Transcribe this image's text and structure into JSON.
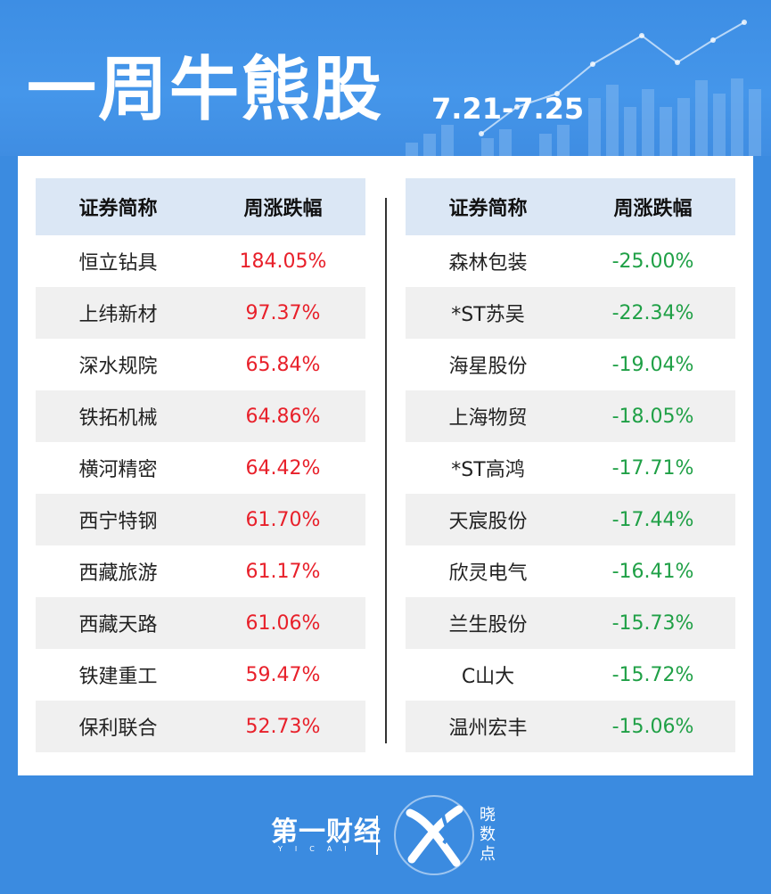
{
  "header": {
    "title": "一周牛熊股",
    "date_range": "7.21-7.25"
  },
  "bull_table": {
    "col_name": "证券简称",
    "col_change": "周涨跌幅",
    "rows": [
      {
        "name": "恒立钻具",
        "change": "184.05%"
      },
      {
        "name": "上纬新材",
        "change": "97.37%"
      },
      {
        "name": "深水规院",
        "change": "65.84%"
      },
      {
        "name": "铁拓机械",
        "change": "64.86%"
      },
      {
        "name": "横河精密",
        "change": "64.42%"
      },
      {
        "name": "西宁特钢",
        "change": "61.70%"
      },
      {
        "name": "西藏旅游",
        "change": "61.17%"
      },
      {
        "name": "西藏天路",
        "change": "61.06%"
      },
      {
        "name": "铁建重工",
        "change": "59.47%"
      },
      {
        "name": "保利联合",
        "change": "52.73%"
      }
    ]
  },
  "bear_table": {
    "col_name": "证券简称",
    "col_change": "周涨跌幅",
    "rows": [
      {
        "name": "森林包装",
        "change": "-25.00%"
      },
      {
        "name": "*ST苏吴",
        "change": "-22.34%"
      },
      {
        "name": "海星股份",
        "change": "-19.04%"
      },
      {
        "name": "上海物贸",
        "change": "-18.05%"
      },
      {
        "name": "*ST高鸿",
        "change": "-17.71%"
      },
      {
        "name": "天宸股份",
        "change": "-17.44%"
      },
      {
        "name": "欣灵电气",
        "change": "-16.41%"
      },
      {
        "name": "兰生股份",
        "change": "-15.73%"
      },
      {
        "name": "C山大",
        "change": "-15.72%"
      },
      {
        "name": "温州宏丰",
        "change": "-15.06%"
      }
    ]
  },
  "footer": {
    "brand": "第一财经",
    "brand_sub": "YICAI",
    "product": [
      "晓",
      "数",
      "点"
    ]
  },
  "colors": {
    "background": "#3b8be0",
    "up": "#e8202a",
    "down": "#1fa046",
    "header_row": "#dbe7f5",
    "alt_row": "#f0f0f0"
  }
}
